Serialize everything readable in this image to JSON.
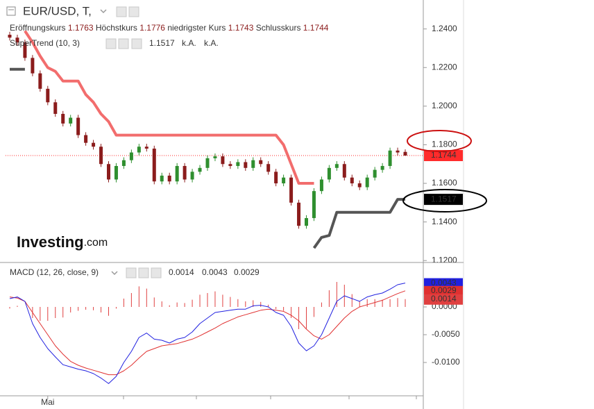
{
  "chart_data": [
    {
      "type": "candlestick",
      "title": "EUR/USD, T,",
      "labels": {
        "open": "Eröffnungskurs",
        "high": "Höchstkurs",
        "low": "niedrigster Kurs",
        "close": "Schlusskurs"
      },
      "categories": [
        null,
        null,
        null,
        null,
        null,
        "Mai",
        null,
        null,
        null,
        null,
        null,
        null,
        null,
        null,
        null,
        null,
        null,
        null,
        null,
        null,
        null,
        null,
        null,
        null,
        null,
        null,
        null,
        null,
        null,
        null,
        null,
        null,
        null,
        null,
        null,
        null,
        null,
        null,
        null,
        null,
        null,
        null,
        null,
        null,
        null,
        null,
        null,
        null,
        null,
        null,
        null,
        null,
        null
      ],
      "open": [
        1.237,
        1.2355,
        1.233,
        1.225,
        1.217,
        1.209,
        1.202,
        1.196,
        1.191,
        1.194,
        1.185,
        1.181,
        1.179,
        1.17,
        1.162,
        1.169,
        1.172,
        1.176,
        1.179,
        1.178,
        1.161,
        1.164,
        1.161,
        1.169,
        1.162,
        1.166,
        1.168,
        1.173,
        1.174,
        1.17,
        1.169,
        1.171,
        1.168,
        1.172,
        1.17,
        1.166,
        1.16,
        1.163,
        1.15,
        1.138,
        1.142,
        1.156,
        1.162,
        1.168,
        1.17,
        1.163,
        1.16,
        1.158,
        1.163,
        1.167,
        1.169,
        1.177,
        1.1763
      ],
      "high": [
        1.2385,
        1.237,
        1.2345,
        1.2265,
        1.2185,
        1.2105,
        1.2035,
        1.1975,
        1.1955,
        1.1955,
        1.1865,
        1.1825,
        1.1805,
        1.1715,
        1.1705,
        1.1735,
        1.1775,
        1.1805,
        1.1805,
        1.1795,
        1.1655,
        1.1655,
        1.1705,
        1.1705,
        1.1675,
        1.1695,
        1.1745,
        1.1755,
        1.1755,
        1.1715,
        1.1725,
        1.1725,
        1.1735,
        1.1735,
        1.1715,
        1.1675,
        1.1645,
        1.1645,
        1.1515,
        1.1435,
        1.1575,
        1.1635,
        1.1695,
        1.1715,
        1.1715,
        1.1645,
        1.1615,
        1.1645,
        1.1685,
        1.1705,
        1.1785,
        1.1785,
        1.1776
      ],
      "low": [
        1.234,
        1.2315,
        1.2235,
        1.2155,
        1.2075,
        1.2005,
        1.1945,
        1.1895,
        1.1895,
        1.1835,
        1.1795,
        1.1775,
        1.1685,
        1.1605,
        1.1605,
        1.1675,
        1.1705,
        1.1745,
        1.1765,
        1.1595,
        1.1595,
        1.1595,
        1.1595,
        1.1605,
        1.1605,
        1.1645,
        1.1665,
        1.1715,
        1.1685,
        1.1675,
        1.1675,
        1.1665,
        1.1665,
        1.1685,
        1.1645,
        1.1585,
        1.1585,
        1.1485,
        1.1365,
        1.1365,
        1.1405,
        1.1545,
        1.1605,
        1.1665,
        1.1615,
        1.1585,
        1.1565,
        1.1565,
        1.1615,
        1.1655,
        1.1675,
        1.1745,
        1.1743
      ],
      "close": [
        1.2355,
        1.233,
        1.225,
        1.217,
        1.209,
        1.202,
        1.196,
        1.191,
        1.194,
        1.185,
        1.181,
        1.179,
        1.17,
        1.162,
        1.169,
        1.172,
        1.176,
        1.179,
        1.178,
        1.161,
        1.164,
        1.161,
        1.169,
        1.162,
        1.166,
        1.168,
        1.173,
        1.174,
        1.17,
        1.169,
        1.171,
        1.168,
        1.172,
        1.17,
        1.166,
        1.16,
        1.163,
        1.15,
        1.138,
        1.142,
        1.156,
        1.162,
        1.168,
        1.17,
        1.163,
        1.16,
        1.158,
        1.163,
        1.167,
        1.169,
        1.177,
        1.176,
        1.1744
      ],
      "up_color": "#2f8f2f",
      "down_color": "#8b1c1c",
      "close_color": "#ff2b2b",
      "ylim": [
        1.119,
        1.255
      ],
      "yticks": [
        {
          "value": 1.12,
          "label": "1.1200"
        },
        {
          "value": 1.14,
          "label": "1.1400"
        },
        {
          "value": 1.16,
          "label": "1.1600"
        },
        {
          "value": 1.18,
          "label": "1.1800"
        },
        {
          "value": 1.2,
          "label": "1.2000"
        },
        {
          "value": 1.22,
          "label": "1.2200"
        },
        {
          "value": 1.24,
          "label": "1.2400"
        }
      ],
      "supertrend": {
        "name": "SuperTrend (10, 3)",
        "na": [
          "k.A.",
          "k.A."
        ],
        "series": [
          {
            "color": "#f26d6d",
            "values": [
              null,
              null,
              1.239,
              1.233,
              1.226,
              1.22,
              1.218,
              1.213,
              1.213,
              1.213,
              1.206,
              1.202,
              1.196,
              1.192,
              1.185,
              1.185,
              1.185,
              1.185,
              1.185,
              1.185,
              1.185,
              1.185,
              1.185,
              1.185,
              1.185,
              1.185,
              1.185,
              1.185,
              1.185,
              1.185,
              1.185,
              1.185,
              1.185,
              1.185,
              1.185,
              1.185,
              1.18,
              1.17,
              1.16,
              1.16,
              1.16,
              null,
              null,
              null,
              null,
              null,
              null,
              null,
              null,
              null,
              null,
              null,
              null
            ]
          },
          {
            "color": "#555555",
            "values": [
              1.2191,
              1.2191,
              1.2191,
              null,
              null,
              null,
              null,
              null,
              null,
              null,
              null,
              null,
              null,
              null,
              null,
              null,
              null,
              null,
              null,
              null,
              null,
              null,
              null,
              null,
              null,
              null,
              null,
              null,
              null,
              null,
              null,
              null,
              null,
              null,
              null,
              null,
              null,
              null,
              null,
              null,
              1.1265,
              1.132,
              1.133,
              1.145,
              1.145,
              1.145,
              1.145,
              1.145,
              1.145,
              1.145,
              1.145,
              1.1517,
              1.1517
            ]
          }
        ]
      },
      "watermark": {
        "brand": "Investing",
        "domain": ".com"
      }
    },
    {
      "type": "macd",
      "title": "MACD (12, 26, close, 9)",
      "ylim": [
        -0.016,
        0.008
      ],
      "yticks": [
        {
          "value": -0.01,
          "label": "-0.0100"
        },
        {
          "value": -0.005,
          "label": "-0.0050"
        },
        {
          "value": 0,
          "label": "0.0000"
        }
      ],
      "histogram": {
        "color": "#e04040",
        "values": [
          -0.0003,
          0.0002,
          0.0,
          -0.002,
          -0.0025,
          -0.0025,
          -0.002,
          -0.0019,
          -0.001,
          -0.0007,
          -0.0005,
          -0.0006,
          -0.001,
          -0.0016,
          -0.0003,
          0.0015,
          0.0025,
          0.0037,
          0.0033,
          0.0017,
          0.001,
          0.0003,
          0.0008,
          0.0007,
          0.0013,
          0.0022,
          0.0025,
          0.0028,
          0.0022,
          0.0018,
          0.0014,
          0.001,
          0.0012,
          0.0009,
          0.0004,
          -0.0004,
          -0.0007,
          -0.002,
          -0.004,
          -0.0039,
          -0.0018,
          0.0008,
          0.003,
          0.0045,
          0.004,
          0.0023,
          0.001,
          0.0014,
          0.0014,
          0.0013,
          0.0014,
          0.0016,
          0.0014
        ]
      },
      "macd": {
        "color": "#2020e0",
        "values": [
          0.0015,
          0.0018,
          0.001,
          -0.003,
          -0.0055,
          -0.0075,
          -0.009,
          -0.0104,
          -0.0108,
          -0.0112,
          -0.0115,
          -0.012,
          -0.0128,
          -0.0138,
          -0.0125,
          -0.01,
          -0.008,
          -0.0055,
          -0.0047,
          -0.0058,
          -0.006,
          -0.0065,
          -0.0058,
          -0.0055,
          -0.0045,
          -0.003,
          -0.002,
          -0.001,
          -0.0008,
          -0.0006,
          -0.0004,
          -0.0004,
          0.0002,
          0.0003,
          0.0,
          -0.001,
          -0.0015,
          -0.0035,
          -0.0065,
          -0.0079,
          -0.007,
          -0.005,
          -0.002,
          0.001,
          0.002,
          0.0015,
          0.001,
          0.0018,
          0.0022,
          0.0025,
          0.0032,
          0.004,
          0.0043
        ]
      },
      "signal": {
        "color": "#e03030",
        "values": [
          0.0018,
          0.0016,
          0.001,
          -0.001,
          -0.003,
          -0.005,
          -0.007,
          -0.0085,
          -0.0098,
          -0.0105,
          -0.011,
          -0.0114,
          -0.0118,
          -0.0122,
          -0.0122,
          -0.0115,
          -0.0105,
          -0.0092,
          -0.008,
          -0.0075,
          -0.007,
          -0.0068,
          -0.0066,
          -0.0062,
          -0.0058,
          -0.0052,
          -0.0045,
          -0.0038,
          -0.003,
          -0.0024,
          -0.0018,
          -0.0014,
          -0.001,
          -0.0006,
          -0.0004,
          -0.0006,
          -0.0008,
          -0.0015,
          -0.0025,
          -0.004,
          -0.0052,
          -0.0058,
          -0.005,
          -0.0035,
          -0.002,
          -0.0008,
          0.0,
          0.0004,
          0.0008,
          0.0012,
          0.0018,
          0.0024,
          0.0029
        ]
      }
    }
  ]
}
